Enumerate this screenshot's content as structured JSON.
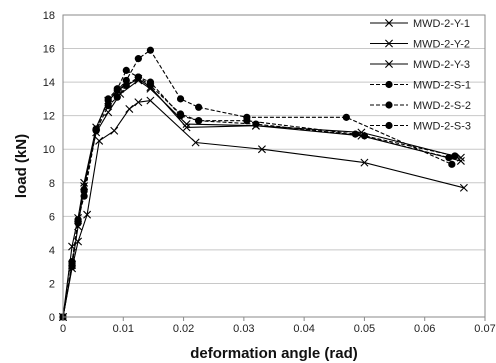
{
  "chart_data": {
    "type": "line",
    "xlabel": "deformation angle (rad)",
    "ylabel": "load (kN)",
    "xlim": [
      0,
      0.07
    ],
    "ylim": [
      0,
      18
    ],
    "x_ticks": [
      "0",
      "0.01",
      "0.02",
      "0.03",
      "0.04",
      "0.05",
      "0.06",
      "0.07"
    ],
    "y_ticks": [
      "0",
      "2",
      "4",
      "6",
      "8",
      "10",
      "12",
      "14",
      "16",
      "18"
    ],
    "grid": "horizontal",
    "legend_position": "top-right",
    "series": [
      {
        "name": "MWD-2-Y-1",
        "line": "solid",
        "marker": "x",
        "color": "#000000",
        "x": [
          0,
          0.0015,
          0.0025,
          0.004,
          0.006,
          0.0085,
          0.011,
          0.0125,
          0.0145,
          0.022,
          0.033,
          0.05,
          0.0665
        ],
        "y": [
          0,
          2.9,
          4.5,
          6.1,
          10.5,
          11.1,
          12.4,
          12.8,
          12.9,
          10.4,
          10.0,
          9.2,
          7.7
        ]
      },
      {
        "name": "MWD-2-Y-2",
        "line": "solid",
        "marker": "x",
        "color": "#000000",
        "x": [
          0,
          0.0015,
          0.0025,
          0.0035,
          0.0055,
          0.0075,
          0.0095,
          0.0125,
          0.0145,
          0.0205,
          0.032,
          0.0495,
          0.066
        ],
        "y": [
          0,
          3.1,
          5.4,
          7.8,
          11.0,
          12.2,
          13.3,
          14.1,
          13.6,
          11.5,
          11.4,
          10.8,
          9.3
        ]
      },
      {
        "name": "MWD-2-Y-3",
        "line": "solid",
        "marker": "x",
        "color": "#000000",
        "x": [
          0,
          0.0015,
          0.0025,
          0.0035,
          0.0055,
          0.0075,
          0.0095,
          0.0125,
          0.0145,
          0.0205,
          0.032,
          0.0495,
          0.066
        ],
        "y": [
          0,
          4.2,
          5.9,
          8.0,
          11.3,
          12.9,
          13.6,
          14.2,
          13.7,
          11.3,
          11.4,
          11.0,
          9.5
        ]
      },
      {
        "name": "MWD-2-S-1",
        "line": "dashed",
        "marker": "circle",
        "color": "#000000",
        "x": [
          0,
          0.0015,
          0.0025,
          0.0035,
          0.0055,
          0.0075,
          0.009,
          0.0105,
          0.0125,
          0.0145,
          0.0195,
          0.0225,
          0.0305,
          0.047,
          0.0645
        ],
        "y": [
          0,
          3.0,
          5.7,
          7.5,
          11.2,
          12.9,
          13.5,
          14.1,
          15.4,
          15.9,
          13.0,
          12.5,
          11.9,
          11.9,
          9.1
        ]
      },
      {
        "name": "MWD-2-S-2",
        "line": "dashed",
        "marker": "circle",
        "color": "#000000",
        "x": [
          0,
          0.0015,
          0.0025,
          0.0035,
          0.0055,
          0.0075,
          0.009,
          0.0105,
          0.0125,
          0.0145,
          0.0195,
          0.0225,
          0.0305,
          0.0485,
          0.064
        ],
        "y": [
          0,
          3.2,
          5.8,
          7.2,
          11.1,
          12.6,
          13.1,
          13.8,
          14.3,
          13.8,
          12.1,
          11.7,
          11.7,
          10.9,
          9.5
        ]
      },
      {
        "name": "MWD-2-S-3",
        "line": "dashed",
        "marker": "circle",
        "color": "#000000",
        "x": [
          0,
          0.0015,
          0.0025,
          0.0035,
          0.0055,
          0.0075,
          0.009,
          0.0105,
          0.0125,
          0.0145,
          0.0195,
          0.0225,
          0.032,
          0.05,
          0.065
        ],
        "y": [
          0,
          3.3,
          5.6,
          7.6,
          11.2,
          13.0,
          13.6,
          14.7,
          14.3,
          14.0,
          12.0,
          11.7,
          11.5,
          10.8,
          9.6
        ]
      }
    ]
  }
}
